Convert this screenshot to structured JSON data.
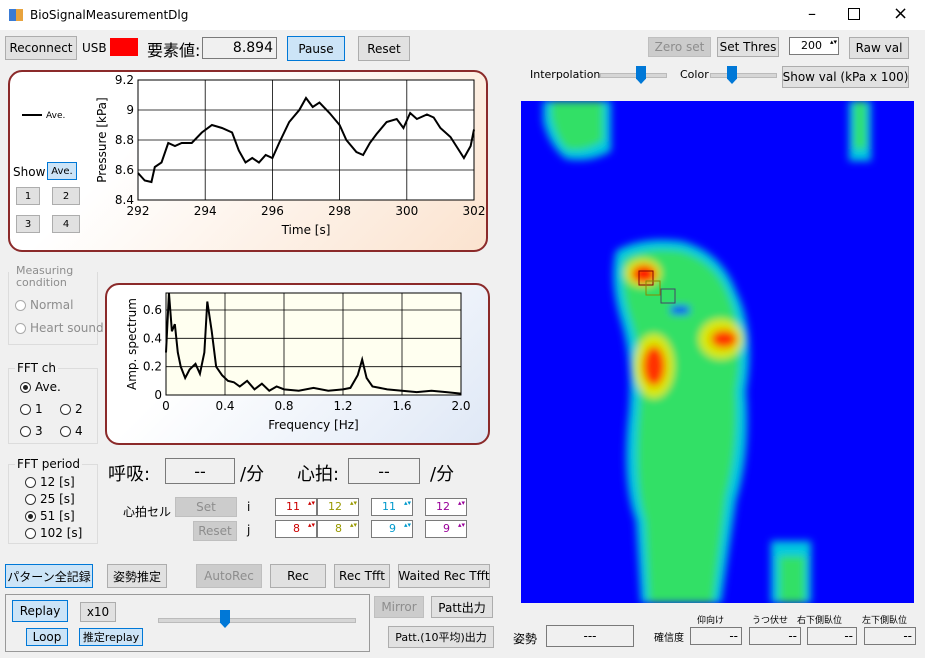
{
  "window": {
    "title": "BioSignalMeasurementDlg"
  },
  "toolbar": {
    "reconnect": "Reconnect",
    "usb": "USB",
    "element_label": "要素値:",
    "element_value": "8.894",
    "pause": "Pause",
    "reset": "Reset",
    "zero_set": "Zero set",
    "set_thres": "Set Thres",
    "thres_value": "200",
    "raw_val": "Raw val",
    "interpolation": "Interpolation",
    "color": "Color",
    "show_val": "Show val (kPa x 100)"
  },
  "show_panel": {
    "label": "Show",
    "buttons": [
      "Ave.",
      "1",
      "2",
      "3",
      "4"
    ]
  },
  "measuring": {
    "title": "Measuring condition",
    "options": [
      "Normal",
      "Heart sound"
    ]
  },
  "fft_ch": {
    "title": "FFT ch",
    "options": [
      "Ave.",
      "1",
      "2",
      "3",
      "4"
    ]
  },
  "fft_period": {
    "title": "FFT period",
    "options": [
      "12 [s]",
      "25 [s]",
      "51 [s]",
      "102 [s]"
    ]
  },
  "rates": {
    "resp_label": "呼吸:",
    "resp_value": "--",
    "resp_unit": "/分",
    "heart_label": "心拍:",
    "heart_value": "--",
    "heart_unit": "/分"
  },
  "heart_cell": {
    "label": "心拍セル",
    "set": "Set",
    "reset": "Reset",
    "i_label": "i",
    "j_label": "j",
    "i": [
      11,
      12,
      11,
      12
    ],
    "j": [
      8,
      8,
      9,
      9
    ]
  },
  "bottom": {
    "record_all": "パターン全記録",
    "posture_est": "姿勢推定",
    "autorec": "AutoRec",
    "rec": "Rec",
    "rec_tfft": "Rec Tfft",
    "waited_rec_tfft": "Waited Rec Tfft",
    "replay": "Replay",
    "x10": "x10",
    "loop": "Loop",
    "est_replay": "推定replay",
    "mirror": "Mirror",
    "patt_out": "Patt出力",
    "patt10_out": "Patt.(10平均)出力"
  },
  "posture": {
    "label": "姿勢",
    "value": "---",
    "confidence": "確信度",
    "classes": [
      "仰向け",
      "うつ伏せ",
      "右下側臥位",
      "左下側臥位"
    ],
    "scores": [
      "--",
      "--",
      "--",
      "--"
    ]
  },
  "chart_data": [
    {
      "type": "line",
      "xlabel": "Time [s]",
      "ylabel": "Pressure [kPa]",
      "x": [
        292.0,
        292.2,
        292.4,
        292.5,
        292.7,
        292.9,
        293.1,
        293.3,
        293.6,
        293.9,
        294.2,
        294.5,
        294.8,
        295.0,
        295.2,
        295.4,
        295.6,
        295.8,
        296.0,
        296.2,
        296.5,
        296.8,
        297.0,
        297.2,
        297.4,
        297.7,
        298.0,
        298.2,
        298.5,
        298.7,
        298.9,
        299.1,
        299.4,
        299.7,
        299.9,
        300.1,
        300.3,
        300.6,
        300.8,
        301.0,
        301.3,
        301.5,
        301.7,
        301.9,
        302.0
      ],
      "series": [
        {
          "name": "Ave.",
          "color": "#000000",
          "values": [
            8.58,
            8.53,
            8.52,
            8.62,
            8.65,
            8.78,
            8.76,
            8.78,
            8.78,
            8.85,
            8.9,
            8.88,
            8.85,
            8.73,
            8.65,
            8.68,
            8.65,
            8.7,
            8.68,
            8.78,
            8.92,
            9.0,
            9.08,
            9.02,
            9.05,
            8.98,
            8.9,
            8.8,
            8.72,
            8.7,
            8.78,
            8.84,
            8.92,
            8.94,
            8.88,
            8.98,
            8.94,
            8.97,
            8.95,
            8.88,
            8.82,
            8.75,
            8.68,
            8.76,
            8.87
          ]
        }
      ],
      "xlim": [
        292,
        302
      ],
      "xticks": [
        292,
        294,
        296,
        298,
        300,
        302
      ],
      "ylim": [
        8.4,
        9.2
      ],
      "yticks": [
        8.4,
        8.6,
        8.8,
        9,
        9.2
      ],
      "grid": true
    },
    {
      "type": "line",
      "xlabel": "Frequency [Hz]",
      "ylabel": "Amp. spectrum",
      "x": [
        0,
        0.02,
        0.04,
        0.06,
        0.08,
        0.1,
        0.13,
        0.16,
        0.2,
        0.23,
        0.26,
        0.28,
        0.31,
        0.34,
        0.38,
        0.42,
        0.46,
        0.5,
        0.55,
        0.6,
        0.65,
        0.7,
        0.75,
        0.8,
        0.9,
        1.0,
        1.1,
        1.2,
        1.25,
        1.3,
        1.33,
        1.36,
        1.4,
        1.5,
        1.6,
        1.7,
        1.8,
        1.9,
        2.0
      ],
      "series": [
        {
          "name": "Amp. spectrum",
          "color": "#000000",
          "values": [
            0.3,
            0.72,
            0.45,
            0.5,
            0.3,
            0.2,
            0.12,
            0.18,
            0.22,
            0.15,
            0.3,
            0.66,
            0.45,
            0.2,
            0.14,
            0.1,
            0.09,
            0.06,
            0.1,
            0.04,
            0.08,
            0.03,
            0.06,
            0.04,
            0.03,
            0.05,
            0.03,
            0.04,
            0.05,
            0.14,
            0.25,
            0.12,
            0.06,
            0.04,
            0.03,
            0.02,
            0.03,
            0.02,
            0.01
          ]
        }
      ],
      "xlim": [
        0,
        2
      ],
      "xticks": [
        0,
        0.4,
        0.8,
        1.2,
        1.6,
        {
          "value": 2,
          "label": "2.0"
        }
      ],
      "ylim": [
        0,
        0.72
      ],
      "yticks": [
        0,
        0.2,
        0.4,
        0.6
      ],
      "grid": true
    }
  ]
}
